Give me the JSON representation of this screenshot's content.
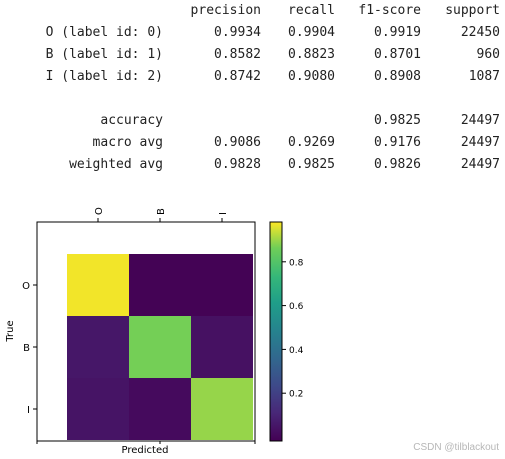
{
  "report": {
    "columns": [
      "precision",
      "recall",
      "f1-score",
      "support"
    ],
    "rows": [
      {
        "label": "O (label id: 0)",
        "precision": "0.9934",
        "recall": "0.9904",
        "f1": "0.9919",
        "support": "22450"
      },
      {
        "label": "B (label id: 1)",
        "precision": "0.8582",
        "recall": "0.8823",
        "f1": "0.8701",
        "support": "960"
      },
      {
        "label": "I (label id: 2)",
        "precision": "0.8742",
        "recall": "0.9080",
        "f1": "0.8908",
        "support": "1087"
      }
    ],
    "summary": [
      {
        "label": "accuracy",
        "precision": "",
        "recall": "",
        "f1": "0.9825",
        "support": "24497"
      },
      {
        "label": "macro avg",
        "precision": "0.9086",
        "recall": "0.9269",
        "f1": "0.9176",
        "support": "24497"
      },
      {
        "label": "weighted avg",
        "precision": "0.9828",
        "recall": "0.9825",
        "f1": "0.9826",
        "support": "24497"
      }
    ]
  },
  "chart_data": {
    "type": "heatmap",
    "categories": [
      "O",
      "B",
      "I"
    ],
    "values": [
      [
        0.99,
        0.005,
        0.005
      ],
      [
        0.07,
        0.88,
        0.05
      ],
      [
        0.06,
        0.03,
        0.91
      ]
    ],
    "xlabel": "Predicted",
    "ylabel": "True",
    "colorbar": {
      "range": [
        0,
        1
      ],
      "ticks": [
        "0.2",
        "0.4",
        "0.6",
        "0.8"
      ],
      "colormap": "viridis"
    }
  },
  "watermark": "CSDN @tilblackout"
}
